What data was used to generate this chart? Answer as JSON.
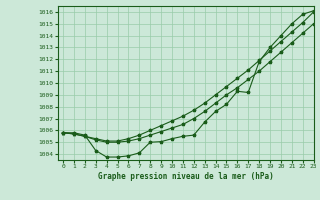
{
  "background_color": "#cce8d8",
  "grid_color": "#99ccaa",
  "line_color": "#1a5c1a",
  "title": "Graphe pression niveau de la mer (hPa)",
  "xlim": [
    -0.5,
    23
  ],
  "ylim": [
    1003.5,
    1016.5
  ],
  "yticks": [
    1004,
    1005,
    1006,
    1007,
    1008,
    1009,
    1010,
    1011,
    1012,
    1013,
    1014,
    1015,
    1016
  ],
  "xticks": [
    0,
    1,
    2,
    3,
    4,
    5,
    6,
    7,
    8,
    9,
    10,
    11,
    12,
    13,
    14,
    15,
    16,
    17,
    18,
    19,
    20,
    21,
    22,
    23
  ],
  "curve1_x": [
    0,
    1,
    2,
    3,
    4,
    5,
    6,
    7,
    8,
    9,
    10,
    11,
    12,
    13,
    14,
    15,
    16,
    17,
    18,
    19,
    20,
    21,
    22,
    23
  ],
  "curve1_y": [
    1005.8,
    1005.8,
    1005.6,
    1004.3,
    1003.75,
    1003.75,
    1003.85,
    1004.1,
    1005.0,
    1005.05,
    1005.3,
    1005.5,
    1005.6,
    1006.7,
    1007.6,
    1008.2,
    1009.3,
    1009.2,
    1011.8,
    1013.0,
    1014.0,
    1015.0,
    1015.8,
    1016.1
  ],
  "curve2_x": [
    0,
    1,
    2,
    3,
    4,
    5,
    6,
    7,
    8,
    9,
    10,
    11,
    12,
    13,
    14,
    15,
    16,
    17,
    18,
    19,
    20,
    21,
    22,
    23
  ],
  "curve2_y": [
    1005.8,
    1005.7,
    1005.5,
    1005.2,
    1005.0,
    1005.0,
    1005.1,
    1005.3,
    1005.6,
    1005.9,
    1006.2,
    1006.5,
    1007.0,
    1007.6,
    1008.3,
    1009.0,
    1009.6,
    1010.3,
    1011.0,
    1011.8,
    1012.6,
    1013.4,
    1014.2,
    1015.0
  ],
  "curve3_x": [
    0,
    1,
    2,
    3,
    4,
    5,
    6,
    7,
    8,
    9,
    10,
    11,
    12,
    13,
    14,
    15,
    16,
    17,
    18,
    19,
    20,
    21,
    22,
    23
  ],
  "curve3_y": [
    1005.8,
    1005.7,
    1005.5,
    1005.3,
    1005.1,
    1005.1,
    1005.3,
    1005.6,
    1006.0,
    1006.4,
    1006.8,
    1007.2,
    1007.7,
    1008.3,
    1009.0,
    1009.7,
    1010.4,
    1011.1,
    1011.9,
    1012.7,
    1013.5,
    1014.3,
    1015.1,
    1016.0
  ]
}
